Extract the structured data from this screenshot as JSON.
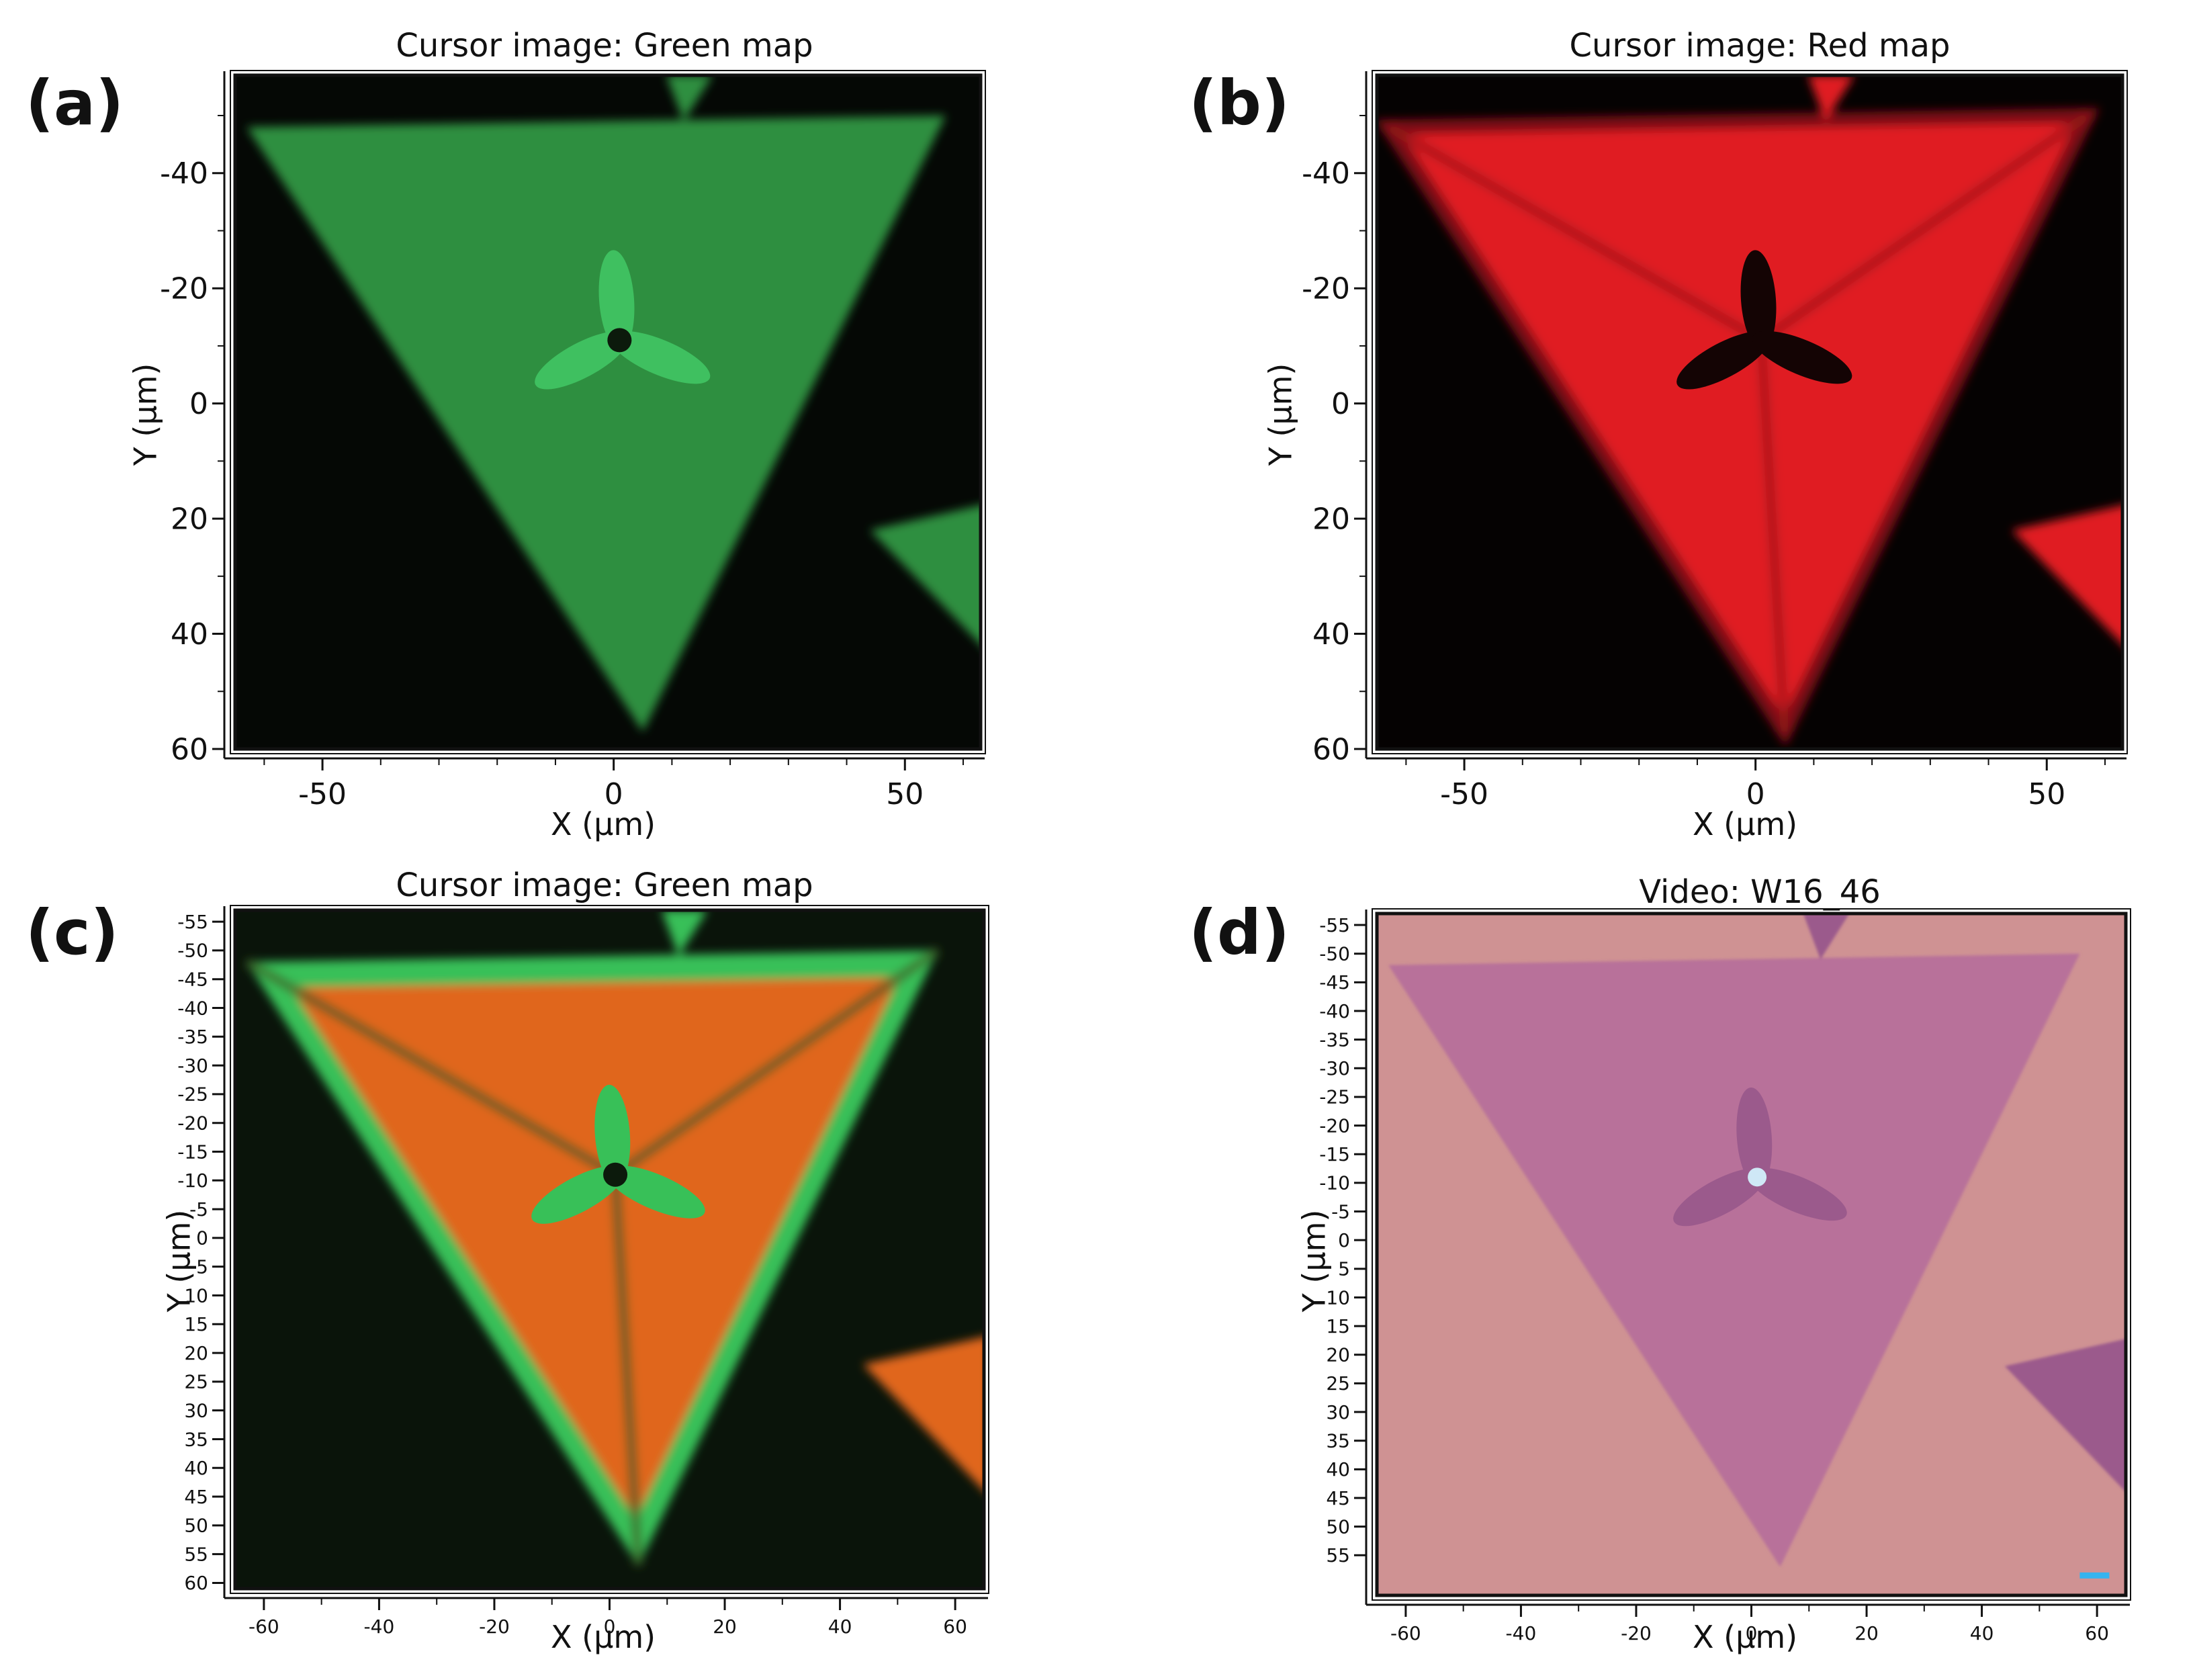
{
  "panels": [
    {
      "id": "a",
      "letter": "(a)",
      "title": "Cursor image: Green map",
      "xlabel": "X (µm)",
      "ylabel": "Y (µm)",
      "x_ticks": [
        "-50",
        "0",
        "50"
      ],
      "y_ticks": [
        "-40",
        "-20",
        "0",
        "20",
        "40",
        "60"
      ],
      "colormap": "green",
      "colors": {
        "background": "#050805",
        "flake": "#2f8f3f",
        "center": "#3fc060",
        "edge": "#2a7a35"
      }
    },
    {
      "id": "b",
      "letter": "(b)",
      "title": "Cursor image: Red map",
      "xlabel": "X (µm)",
      "ylabel": "Y (µm)",
      "x_ticks": [
        "-50",
        "0",
        "50"
      ],
      "y_ticks": [
        "-40",
        "-20",
        "0",
        "20",
        "40",
        "60"
      ],
      "colormap": "red",
      "colors": {
        "background": "#050202",
        "flake": "#e01e24",
        "center": "#140404",
        "edge": "#7a1014"
      }
    },
    {
      "id": "c",
      "letter": "(c)",
      "title": "Cursor image: Green map",
      "xlabel": "X (µm)",
      "ylabel": "Y (µm)",
      "x_ticks": [
        "-60",
        "-40",
        "-20",
        "0",
        "20",
        "40",
        "60"
      ],
      "y_ticks": [
        "-55",
        "-50",
        "-45",
        "-40",
        "-35",
        "-30",
        "-25",
        "-20",
        "-15",
        "-10",
        "-5",
        "0",
        "5",
        "10",
        "15",
        "20",
        "25",
        "30",
        "35",
        "40",
        "45",
        "50",
        "55",
        "60"
      ],
      "colormap": "overlay",
      "colors": {
        "background": "#0a140a",
        "flake": "#e0661e",
        "center": "#38c058",
        "edge": "#2f8f3f"
      }
    },
    {
      "id": "d",
      "letter": "(d)",
      "title": "Video: W16_46",
      "xlabel": "X (µm)",
      "ylabel": "Y (µm)",
      "x_ticks": [
        "-60",
        "-40",
        "-20",
        "0",
        "20",
        "40",
        "60"
      ],
      "y_ticks": [
        "-55",
        "-50",
        "-45",
        "-40",
        "-35",
        "-30",
        "-25",
        "-20",
        "-15",
        "-10",
        "-5",
        "0",
        "5",
        "10",
        "15",
        "20",
        "25",
        "30",
        "35",
        "40",
        "45",
        "50",
        "55"
      ],
      "colormap": "optical",
      "colors": {
        "background": "#cf9293",
        "flake": "#b8719a",
        "center": "#9b5a8c",
        "edge": "#b06c94",
        "bright_spot": "#cfe8f6",
        "scale_bar": "#36b4ee"
      }
    }
  ]
}
